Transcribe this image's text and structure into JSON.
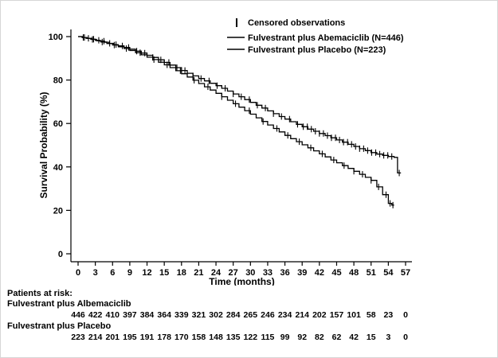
{
  "figure": {
    "xlabel": "Time (months)",
    "ylabel": "Survival Probability (%)"
  },
  "legend": {
    "censored_label": "Censored observations",
    "series1_label": "Fulvestrant plus Abemaciclib (N=446)",
    "series2_label": "Fulvestrant plus Placebo (N=223)"
  },
  "risk_table": {
    "header": "Patients at risk:",
    "rows": [
      {
        "label": "Fulvestrant plus Albemaciclib",
        "counts": [
          446,
          422,
          410,
          397,
          384,
          364,
          339,
          321,
          302,
          284,
          265,
          246,
          234,
          214,
          202,
          157,
          101,
          58,
          23,
          0
        ]
      },
      {
        "label": "Fulvestrant plus Placebo",
        "counts": [
          223,
          214,
          201,
          195,
          191,
          178,
          170,
          158,
          148,
          135,
          122,
          115,
          99,
          92,
          82,
          62,
          42,
          15,
          3,
          0
        ]
      }
    ]
  },
  "chart_data": {
    "type": "line",
    "subtype": "kaplan-meier-step",
    "title": "",
    "xlabel": "Time (months)",
    "ylabel": "Survival Probability (%)",
    "xlim": [
      0,
      57
    ],
    "ylim": [
      0,
      100
    ],
    "xticks": [
      0,
      3,
      6,
      9,
      12,
      15,
      18,
      21,
      24,
      27,
      30,
      33,
      36,
      39,
      42,
      45,
      48,
      51,
      54,
      57
    ],
    "yticks": [
      0,
      20,
      40,
      60,
      80,
      100
    ],
    "grid": false,
    "legend_position": "top-right-inside",
    "line_color": "#000000",
    "series": [
      {
        "name": "Fulvestrant plus Abemaciclib (N=446)",
        "color": "#000000",
        "points": [
          [
            0,
            100
          ],
          [
            0.7,
            99.6
          ],
          [
            1.4,
            99.2
          ],
          [
            2.2,
            98.8
          ],
          [
            3,
            98.3
          ],
          [
            3.8,
            97.9
          ],
          [
            4.6,
            97.4
          ],
          [
            5.4,
            96.9
          ],
          [
            6.2,
            96.3
          ],
          [
            7,
            95.7
          ],
          [
            8,
            95
          ],
          [
            9,
            94.2
          ],
          [
            10,
            93.3
          ],
          [
            11,
            92.4
          ],
          [
            12,
            91.4
          ],
          [
            13,
            90.4
          ],
          [
            14,
            89.3
          ],
          [
            15,
            88.1
          ],
          [
            16,
            86.9
          ],
          [
            17,
            85.7
          ],
          [
            18,
            84.4
          ],
          [
            19,
            83.1
          ],
          [
            20,
            81.9
          ],
          [
            21,
            80.7
          ],
          [
            22,
            79.6
          ],
          [
            23,
            78.5
          ],
          [
            24,
            77.4
          ],
          [
            25,
            76.2
          ],
          [
            26,
            74.9
          ],
          [
            27,
            73.6
          ],
          [
            28,
            72.3
          ],
          [
            29,
            71
          ],
          [
            30,
            69.7
          ],
          [
            31,
            68.4
          ],
          [
            32,
            67.1
          ],
          [
            33,
            65.8
          ],
          [
            34,
            64.5
          ],
          [
            35,
            63.2
          ],
          [
            36,
            62
          ],
          [
            37,
            60.8
          ],
          [
            38,
            59.6
          ],
          [
            39,
            58.5
          ],
          [
            40,
            57.4
          ],
          [
            41,
            56.4
          ],
          [
            42,
            55.4
          ],
          [
            43,
            54.4
          ],
          [
            44,
            53.4
          ],
          [
            45,
            52.4
          ],
          [
            46,
            51.4
          ],
          [
            47,
            50.4
          ],
          [
            48,
            49.4
          ],
          [
            49,
            48.4
          ],
          [
            50,
            47.5
          ],
          [
            51,
            46.6
          ],
          [
            52,
            45.9
          ],
          [
            53,
            45.3
          ],
          [
            54,
            44.8
          ],
          [
            55,
            44.4
          ],
          [
            55.6,
            37.2
          ],
          [
            56.2,
            37.2
          ]
        ],
        "censor_times": [
          0.9,
          1.8,
          2.7,
          3.6,
          4.5,
          5.5,
          6.6,
          7.7,
          8.8,
          10.2,
          11.6,
          13,
          14.4,
          15.8,
          17.2,
          18.6,
          20,
          21.4,
          22.8,
          24.2,
          25.6,
          27,
          28.4,
          29.8,
          31.2,
          32.6,
          34,
          35.4,
          36.8,
          38.2,
          39.2,
          39.9,
          40.6,
          41.3,
          42,
          42.7,
          43.4,
          44.1,
          44.8,
          45.5,
          46.2,
          46.9,
          47.6,
          48.3,
          49,
          49.7,
          50.4,
          51.1,
          51.8,
          52.5,
          53.2,
          53.9,
          54.6,
          55.9
        ]
      },
      {
        "name": "Fulvestrant plus Placebo (N=223)",
        "color": "#000000",
        "points": [
          [
            0,
            100
          ],
          [
            0.8,
            99.6
          ],
          [
            1.6,
            99.2
          ],
          [
            2.4,
            98.7
          ],
          [
            3.2,
            98.1
          ],
          [
            4,
            97.5
          ],
          [
            5,
            96.8
          ],
          [
            6,
            96.1
          ],
          [
            7,
            95.3
          ],
          [
            8,
            94.5
          ],
          [
            9,
            93.6
          ],
          [
            10,
            92.6
          ],
          [
            11,
            91.6
          ],
          [
            12,
            90.5
          ],
          [
            13,
            89.4
          ],
          [
            14,
            88.2
          ],
          [
            15,
            87
          ],
          [
            16,
            85.7
          ],
          [
            17,
            84.3
          ],
          [
            18,
            82.9
          ],
          [
            19,
            81.4
          ],
          [
            20,
            79.9
          ],
          [
            21,
            78.4
          ],
          [
            22,
            76.9
          ],
          [
            23,
            75.4
          ],
          [
            24,
            73.9
          ],
          [
            25,
            72.3
          ],
          [
            26,
            70.7
          ],
          [
            27,
            69.1
          ],
          [
            28,
            67.5
          ],
          [
            29,
            65.9
          ],
          [
            30,
            64.3
          ],
          [
            31,
            62.6
          ],
          [
            32,
            60.9
          ],
          [
            33,
            59.3
          ],
          [
            34,
            57.7
          ],
          [
            35,
            56.1
          ],
          [
            36,
            54.5
          ],
          [
            37,
            53
          ],
          [
            38,
            51.6
          ],
          [
            39,
            50.2
          ],
          [
            40,
            48.8
          ],
          [
            41,
            47.4
          ],
          [
            42,
            46
          ],
          [
            43,
            44.6
          ],
          [
            44,
            43.2
          ],
          [
            45,
            41.9
          ],
          [
            46,
            40.6
          ],
          [
            47,
            39.3
          ],
          [
            48,
            38
          ],
          [
            49,
            36.6
          ],
          [
            50,
            35.2
          ],
          [
            51,
            33.8
          ],
          [
            52,
            30.8
          ],
          [
            53,
            27.2
          ],
          [
            54,
            23.2
          ],
          [
            54.6,
            22.4
          ],
          [
            55,
            22.4
          ]
        ],
        "censor_times": [
          1.1,
          2.5,
          4.2,
          6.3,
          8.4,
          10.8,
          13.2,
          15.5,
          17.8,
          20.2,
          22.6,
          25,
          27.4,
          29.8,
          32.2,
          34.6,
          36.5,
          38.5,
          40.5,
          42.5,
          44.5,
          46.3,
          48,
          49.5,
          51,
          52.3,
          53.6,
          54.3,
          54.8
        ]
      }
    ]
  }
}
